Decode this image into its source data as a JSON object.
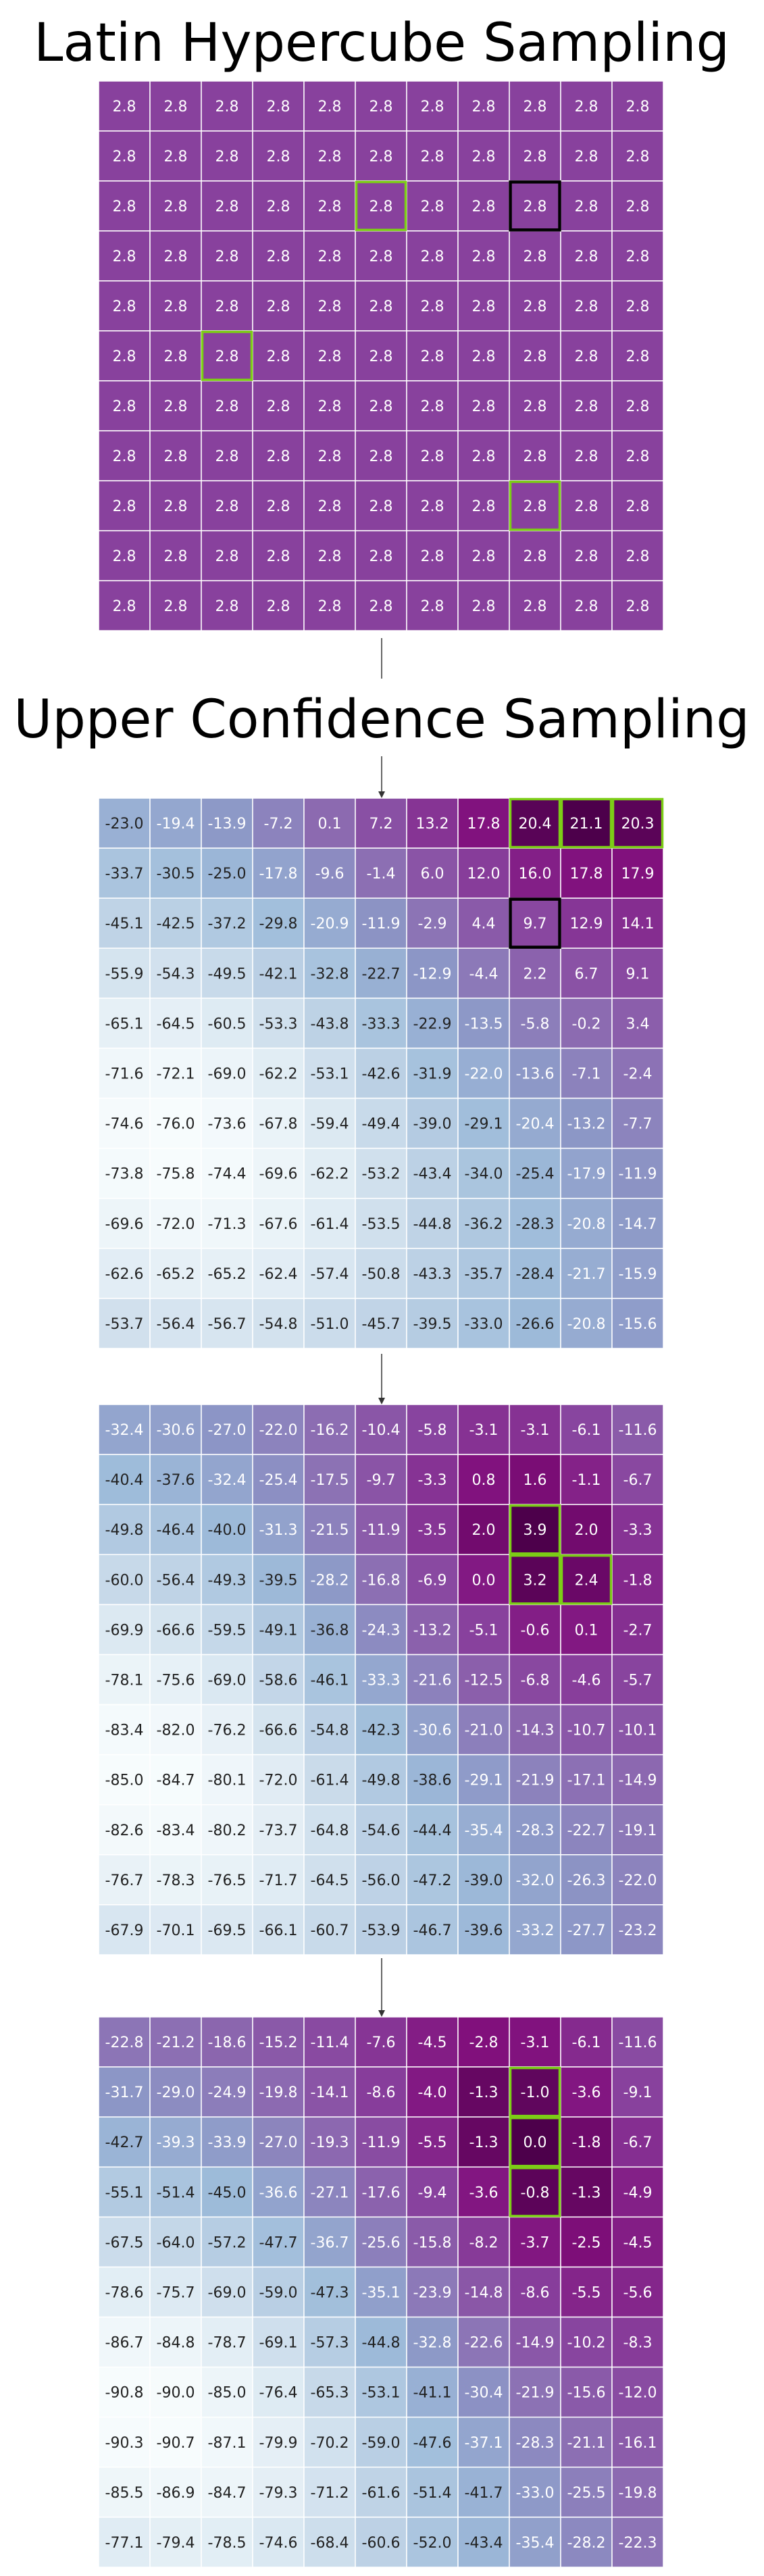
{
  "titles": {
    "lhs": "Latin Hypercube Sampling",
    "ucs": "Upper Confidence Sampling"
  },
  "colors": {
    "highlight": "#7ccd16",
    "selected": "#000000",
    "grid_line": "#ffffff",
    "arrow": "#333333",
    "scale_low": "#f7fcfd",
    "scale_mid": "#8c96c6",
    "scale_high": "#4d004b",
    "lhs_cell": "#88419d"
  },
  "chart_data": [
    {
      "type": "heatmap",
      "title": "Latin Hypercube Sampling",
      "rows": 11,
      "cols": 11,
      "values": [
        [
          2.8,
          2.8,
          2.8,
          2.8,
          2.8,
          2.8,
          2.8,
          2.8,
          2.8,
          2.8,
          2.8
        ],
        [
          2.8,
          2.8,
          2.8,
          2.8,
          2.8,
          2.8,
          2.8,
          2.8,
          2.8,
          2.8,
          2.8
        ],
        [
          2.8,
          2.8,
          2.8,
          2.8,
          2.8,
          2.8,
          2.8,
          2.8,
          2.8,
          2.8,
          2.8
        ],
        [
          2.8,
          2.8,
          2.8,
          2.8,
          2.8,
          2.8,
          2.8,
          2.8,
          2.8,
          2.8,
          2.8
        ],
        [
          2.8,
          2.8,
          2.8,
          2.8,
          2.8,
          2.8,
          2.8,
          2.8,
          2.8,
          2.8,
          2.8
        ],
        [
          2.8,
          2.8,
          2.8,
          2.8,
          2.8,
          2.8,
          2.8,
          2.8,
          2.8,
          2.8,
          2.8
        ],
        [
          2.8,
          2.8,
          2.8,
          2.8,
          2.8,
          2.8,
          2.8,
          2.8,
          2.8,
          2.8,
          2.8
        ],
        [
          2.8,
          2.8,
          2.8,
          2.8,
          2.8,
          2.8,
          2.8,
          2.8,
          2.8,
          2.8,
          2.8
        ],
        [
          2.8,
          2.8,
          2.8,
          2.8,
          2.8,
          2.8,
          2.8,
          2.8,
          2.8,
          2.8,
          2.8
        ],
        [
          2.8,
          2.8,
          2.8,
          2.8,
          2.8,
          2.8,
          2.8,
          2.8,
          2.8,
          2.8,
          2.8
        ],
        [
          2.8,
          2.8,
          2.8,
          2.8,
          2.8,
          2.8,
          2.8,
          2.8,
          2.8,
          2.8,
          2.8
        ]
      ],
      "highlighted": [
        [
          2,
          5
        ],
        [
          5,
          2
        ],
        [
          8,
          8
        ]
      ],
      "selected": [
        [
          2,
          8
        ]
      ]
    },
    {
      "type": "heatmap",
      "title": "Upper Confidence Sampling",
      "rows": 11,
      "cols": 11,
      "values": [
        [
          -23.0,
          -19.4,
          -13.9,
          -7.2,
          0.1,
          7.2,
          13.2,
          17.8,
          20.4,
          21.1,
          20.3
        ],
        [
          -33.7,
          -30.5,
          -25.0,
          -17.8,
          -9.6,
          -1.4,
          6.0,
          12.0,
          16.0,
          17.8,
          17.9
        ],
        [
          -45.1,
          -42.5,
          -37.2,
          -29.8,
          -20.9,
          -11.9,
          -2.9,
          4.4,
          9.7,
          12.9,
          14.1
        ],
        [
          -55.9,
          -54.3,
          -49.5,
          -42.1,
          -32.8,
          -22.7,
          -12.9,
          -4.4,
          2.2,
          6.7,
          9.1
        ],
        [
          -65.1,
          -64.5,
          -60.5,
          -53.3,
          -43.8,
          -33.3,
          -22.9,
          -13.5,
          -5.8,
          -0.2,
          3.4
        ],
        [
          -71.6,
          -72.1,
          -69.0,
          -62.2,
          -53.1,
          -42.6,
          -31.9,
          -22.0,
          -13.6,
          -7.1,
          -2.4
        ],
        [
          -74.6,
          -76.0,
          -73.6,
          -67.8,
          -59.4,
          -49.4,
          -39.0,
          -29.1,
          -20.4,
          -13.2,
          -7.7
        ],
        [
          -73.8,
          -75.8,
          -74.4,
          -69.6,
          -62.2,
          -53.2,
          -43.4,
          -34.0,
          -25.4,
          -17.9,
          -11.9
        ],
        [
          -69.6,
          -72.0,
          -71.3,
          -67.6,
          -61.4,
          -53.5,
          -44.8,
          -36.2,
          -28.3,
          -20.8,
          -14.7
        ],
        [
          -62.6,
          -65.2,
          -65.2,
          -62.4,
          -57.4,
          -50.8,
          -43.3,
          -35.7,
          -28.4,
          -21.7,
          -15.9
        ],
        [
          -53.7,
          -56.4,
          -56.7,
          -54.8,
          -51.0,
          -45.7,
          -39.5,
          -33.0,
          -26.6,
          -20.8,
          -15.6
        ]
      ],
      "highlighted": [
        [
          0,
          8
        ],
        [
          0,
          9
        ],
        [
          0,
          10
        ]
      ],
      "selected": [
        [
          2,
          8
        ]
      ]
    },
    {
      "type": "heatmap",
      "title": "",
      "rows": 11,
      "cols": 11,
      "values": [
        [
          -32.4,
          -30.6,
          -27.0,
          -22.0,
          -16.2,
          -10.4,
          -5.8,
          -3.1,
          -3.1,
          -6.1,
          -11.6
        ],
        [
          -40.4,
          -37.6,
          -32.4,
          -25.4,
          -17.5,
          -9.7,
          -3.3,
          0.8,
          1.6,
          -1.1,
          -6.7
        ],
        [
          -49.8,
          -46.4,
          -40.0,
          -31.3,
          -21.5,
          -11.9,
          -3.5,
          2.0,
          3.9,
          2.0,
          -3.3
        ],
        [
          -60.0,
          -56.4,
          -49.3,
          -39.5,
          -28.2,
          -16.8,
          -6.9,
          0.0,
          3.2,
          2.4,
          -1.8
        ],
        [
          -69.9,
          -66.6,
          -59.5,
          -49.1,
          -36.8,
          -24.3,
          -13.2,
          -5.1,
          -0.6,
          0.1,
          -2.7
        ],
        [
          -78.1,
          -75.6,
          -69.0,
          -58.6,
          -46.1,
          -33.3,
          -21.6,
          -12.5,
          -6.8,
          -4.6,
          -5.7
        ],
        [
          -83.4,
          -82.0,
          -76.2,
          -66.6,
          -54.8,
          -42.3,
          -30.6,
          -21.0,
          -14.3,
          -10.7,
          -10.1
        ],
        [
          -85.0,
          -84.7,
          -80.1,
          -72.0,
          -61.4,
          -49.8,
          -38.6,
          -29.1,
          -21.9,
          -17.1,
          -14.9
        ],
        [
          -82.6,
          -83.4,
          -80.2,
          -73.7,
          -64.8,
          -54.6,
          -44.4,
          -35.4,
          -28.3,
          -22.7,
          -19.1
        ],
        [
          -76.7,
          -78.3,
          -76.5,
          -71.7,
          -64.5,
          -56.0,
          -47.2,
          -39.0,
          -32.0,
          -26.3,
          -22.0
        ],
        [
          -67.9,
          -70.1,
          -69.5,
          -66.1,
          -60.7,
          -53.9,
          -46.7,
          -39.6,
          -33.2,
          -27.7,
          -23.2
        ]
      ],
      "highlighted": [
        [
          2,
          8
        ],
        [
          3,
          8
        ],
        [
          3,
          9
        ]
      ],
      "selected": []
    },
    {
      "type": "heatmap",
      "title": "",
      "rows": 11,
      "cols": 11,
      "values": [
        [
          -22.8,
          -21.2,
          -18.6,
          -15.2,
          -11.4,
          -7.6,
          -4.5,
          -2.8,
          -3.1,
          -6.1,
          -11.6
        ],
        [
          -31.7,
          -29.0,
          -24.9,
          -19.8,
          -14.1,
          -8.6,
          -4.0,
          -1.3,
          -1.0,
          -3.6,
          -9.1
        ],
        [
          -42.7,
          -39.3,
          -33.9,
          -27.0,
          -19.3,
          -11.9,
          -5.5,
          -1.3,
          0.0,
          -1.8,
          -6.7
        ],
        [
          -55.1,
          -51.4,
          -45.0,
          -36.6,
          -27.1,
          -17.6,
          -9.4,
          -3.6,
          -0.8,
          -1.3,
          -4.9
        ],
        [
          -67.5,
          -64.0,
          -57.2,
          -47.7,
          -36.7,
          -25.6,
          -15.8,
          -8.2,
          -3.7,
          -2.5,
          -4.5
        ],
        [
          -78.6,
          -75.7,
          -69.0,
          -59.0,
          -47.3,
          -35.1,
          -23.9,
          -14.8,
          -8.6,
          -5.5,
          -5.6
        ],
        [
          -86.7,
          -84.8,
          -78.7,
          -69.1,
          -57.3,
          -44.8,
          -32.8,
          -22.6,
          -14.9,
          -10.2,
          -8.3
        ],
        [
          -90.8,
          -90.0,
          -85.0,
          -76.4,
          -65.3,
          -53.1,
          -41.1,
          -30.4,
          -21.9,
          -15.6,
          -12.0
        ],
        [
          -90.3,
          -90.7,
          -87.1,
          -79.9,
          -70.2,
          -59.0,
          -47.6,
          -37.1,
          -28.3,
          -21.1,
          -16.1
        ],
        [
          -85.5,
          -86.9,
          -84.7,
          -79.3,
          -71.2,
          -61.6,
          -51.4,
          -41.7,
          -33.0,
          -25.5,
          -19.8
        ],
        [
          -77.1,
          -79.4,
          -78.5,
          -74.6,
          -68.4,
          -60.6,
          -52.0,
          -43.4,
          -35.4,
          -28.2,
          -22.3
        ]
      ],
      "highlighted": [
        [
          1,
          8
        ],
        [
          2,
          8
        ],
        [
          3,
          8
        ]
      ],
      "selected": []
    }
  ]
}
